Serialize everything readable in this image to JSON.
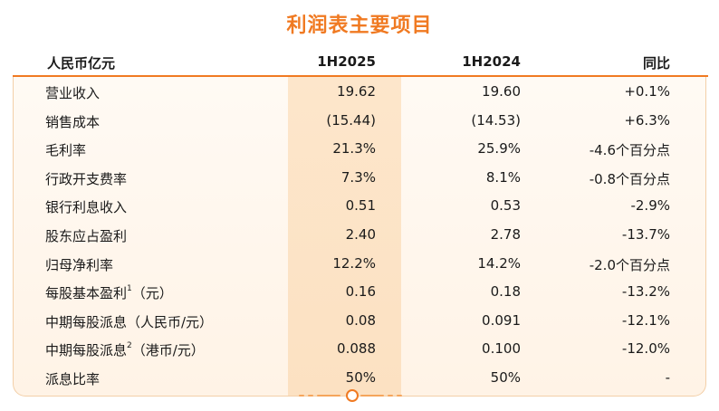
{
  "title": "利润表主要项目",
  "header": {
    "label": "人民币亿元",
    "h2025": "1H2025",
    "h2024": "1H2024",
    "yoy": "同比"
  },
  "rows": [
    {
      "label": "营业收入",
      "sup": "",
      "suffix": "",
      "h2025": "19.62",
      "h2024": "19.60",
      "yoy": "+0.1%"
    },
    {
      "label": "销售成本",
      "sup": "",
      "suffix": "",
      "h2025": "(15.44)",
      "h2024": "(14.53)",
      "yoy": "+6.3%"
    },
    {
      "label": "毛利率",
      "sup": "",
      "suffix": "",
      "h2025": "21.3%",
      "h2024": "25.9%",
      "yoy": "-4.6个百分点"
    },
    {
      "label": "行政开支费率",
      "sup": "",
      "suffix": "",
      "h2025": "7.3%",
      "h2024": "8.1%",
      "yoy": "-0.8个百分点"
    },
    {
      "label": "银行利息收入",
      "sup": "",
      "suffix": "",
      "h2025": "0.51",
      "h2024": "0.53",
      "yoy": "-2.9%"
    },
    {
      "label": "股东应占盈利",
      "sup": "",
      "suffix": "",
      "h2025": "2.40",
      "h2024": "2.78",
      "yoy": "-13.7%"
    },
    {
      "label": "归母净利率",
      "sup": "",
      "suffix": "",
      "h2025": "12.2%",
      "h2024": "14.2%",
      "yoy": "-2.0个百分点"
    },
    {
      "label": "每股基本盈利",
      "sup": "1",
      "suffix": "（元）",
      "h2025": "0.16",
      "h2024": "0.18",
      "yoy": "-13.2%"
    },
    {
      "label": "中期每股派息（人民币/元）",
      "sup": "",
      "suffix": "",
      "h2025": "0.08",
      "h2024": "0.091",
      "yoy": "-12.1%"
    },
    {
      "label": "中期每股派息",
      "sup": "2",
      "suffix": "（港币/元）",
      "h2025": "0.088",
      "h2024": "0.100",
      "yoy": "-12.0%"
    },
    {
      "label": "派息比率",
      "sup": "",
      "suffix": "",
      "h2025": "50%",
      "h2024": "50%",
      "yoy": "-"
    }
  ],
  "colors": {
    "accent": "#f07a22",
    "highlight": "#fde6cb"
  }
}
